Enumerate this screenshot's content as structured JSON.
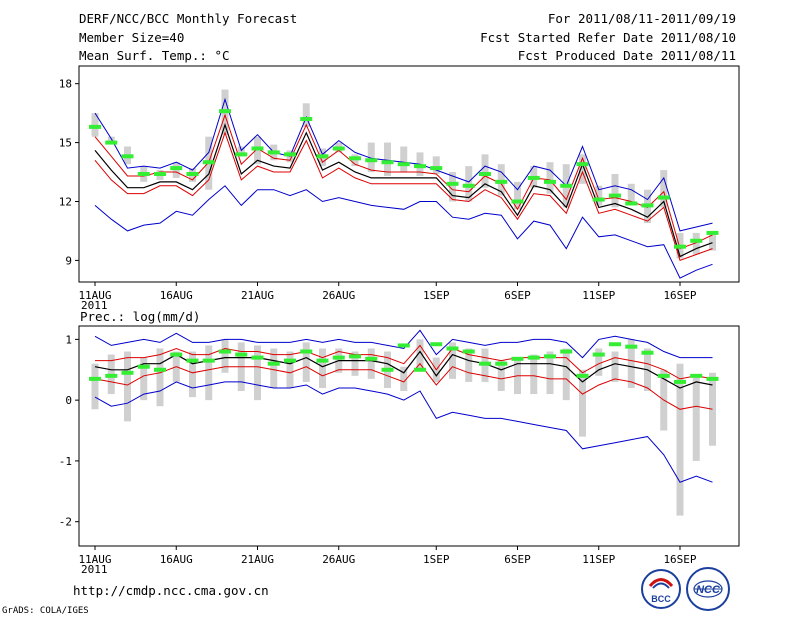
{
  "header": {
    "title": "DERF/NCC/BCC Monthly Forecast",
    "member_size": "Member Size=40",
    "variable": "Mean Surf. Temp.: °C",
    "period": "For 2011/08/11-2011/09/19",
    "started": "Fcst Started Refer Date 2011/08/10",
    "produced": "Fcst Produced Date 2011/08/11"
  },
  "footer": {
    "url": "http://cmdp.ncc.cma.gov.cn",
    "grads": "GrADS: COLA/IGES",
    "logo_bcc": "BCC",
    "logo_ncc": "NCC"
  },
  "colors": {
    "mean": "#000000",
    "inner": "#dd0000",
    "outer": "#0000cc",
    "box": "#d0d0d0",
    "marker": "#33ee33"
  },
  "chart_data": [
    {
      "type": "line",
      "title": "Mean Surf. Temp.: °C",
      "xlabel": "",
      "ylabel": "°C",
      "x_tick_labels": [
        "11AUG",
        "16AUG",
        "21AUG",
        "26AUG",
        "1SEP",
        "6SEP",
        "11SEP",
        "16SEP"
      ],
      "x_tick_days": [
        1,
        6,
        11,
        16,
        22,
        27,
        32,
        37
      ],
      "year_label": "2011",
      "ylim": [
        7.9,
        18.9
      ],
      "yticks": [
        9,
        12,
        15,
        18
      ],
      "series": [
        {
          "name": "max",
          "values": [
            16.5,
            15.2,
            13.7,
            13.8,
            13.7,
            14.0,
            13.6,
            14.5,
            17.2,
            14.6,
            15.4,
            14.5,
            14.3,
            16.3,
            14.4,
            15.1,
            14.5,
            14.2,
            14.1,
            14.0,
            13.9,
            13.6,
            13.3,
            13.0,
            13.8,
            13.5,
            12.6,
            13.8,
            13.6,
            12.8,
            14.8,
            12.6,
            12.8,
            12.6,
            12.1,
            13.2,
            10.5,
            10.7,
            10.9
          ]
        },
        {
          "name": "upper",
          "values": [
            15.3,
            14.3,
            13.3,
            13.3,
            13.5,
            13.5,
            13.1,
            14.0,
            16.4,
            13.9,
            14.7,
            14.2,
            14.1,
            15.9,
            14.0,
            14.6,
            13.9,
            13.6,
            13.5,
            13.5,
            13.5,
            13.4,
            12.6,
            12.5,
            13.3,
            12.9,
            11.6,
            13.2,
            13.1,
            12.1,
            14.2,
            12.1,
            12.2,
            12.0,
            11.7,
            12.5,
            9.6,
            9.9,
            10.3
          ]
        },
        {
          "name": "mean",
          "values": [
            14.6,
            13.6,
            12.7,
            12.7,
            13.0,
            13.0,
            12.6,
            13.4,
            15.9,
            13.4,
            14.1,
            13.8,
            13.7,
            15.5,
            13.6,
            14.0,
            13.5,
            13.2,
            13.2,
            13.2,
            13.2,
            13.2,
            12.3,
            12.2,
            12.9,
            12.5,
            11.3,
            12.8,
            12.6,
            11.7,
            13.9,
            11.7,
            11.9,
            11.6,
            11.2,
            12.0,
            9.2,
            9.6,
            9.9
          ]
        },
        {
          "name": "lower",
          "values": [
            14.1,
            13.1,
            12.4,
            12.4,
            12.8,
            12.8,
            12.3,
            13.1,
            15.5,
            13.1,
            13.8,
            13.5,
            13.5,
            15.1,
            13.2,
            13.7,
            13.2,
            12.9,
            12.9,
            12.9,
            12.9,
            12.9,
            12.1,
            12.0,
            12.6,
            12.2,
            11.1,
            12.4,
            12.3,
            11.4,
            13.5,
            11.4,
            11.6,
            11.3,
            11.0,
            11.7,
            9.0,
            9.3,
            9.6
          ]
        },
        {
          "name": "min",
          "values": [
            11.8,
            11.1,
            10.5,
            10.8,
            10.9,
            11.5,
            11.3,
            12.1,
            12.8,
            11.8,
            12.6,
            12.6,
            12.3,
            12.6,
            12.0,
            12.2,
            12.0,
            11.8,
            11.7,
            11.6,
            12.0,
            12.0,
            11.2,
            11.1,
            11.4,
            11.3,
            10.1,
            11.0,
            10.8,
            9.6,
            11.2,
            10.2,
            10.3,
            10.0,
            9.7,
            9.8,
            8.1,
            8.5,
            8.8
          ]
        }
      ],
      "box": [
        [
          15.3,
          16.5
        ],
        [
          15.0,
          15.3
        ],
        [
          13.9,
          14.8
        ],
        [
          13.0,
          13.8
        ],
        [
          13.1,
          13.6
        ],
        [
          13.2,
          14.0
        ],
        [
          13.0,
          13.7
        ],
        [
          12.6,
          15.3
        ],
        [
          15.4,
          17.7
        ],
        [
          14.3,
          14.8
        ],
        [
          13.9,
          15.3
        ],
        [
          14.1,
          14.9
        ],
        [
          14.0,
          14.6
        ],
        [
          15.8,
          17.0
        ],
        [
          13.8,
          14.7
        ],
        [
          14.5,
          15.0
        ],
        [
          13.8,
          14.4
        ],
        [
          13.5,
          15.0
        ],
        [
          13.3,
          15.0
        ],
        [
          13.5,
          14.8
        ],
        [
          13.3,
          14.5
        ],
        [
          13.4,
          14.3
        ],
        [
          12.0,
          13.5
        ],
        [
          12.0,
          13.8
        ],
        [
          12.7,
          14.4
        ],
        [
          12.3,
          13.9
        ],
        [
          11.6,
          13.0
        ],
        [
          12.7,
          13.8
        ],
        [
          12.4,
          14.0
        ],
        [
          11.7,
          13.9
        ],
        [
          12.9,
          14.4
        ],
        [
          11.8,
          12.8
        ],
        [
          11.7,
          13.4
        ],
        [
          11.8,
          12.9
        ],
        [
          10.9,
          12.6
        ],
        [
          11.7,
          13.6
        ],
        [
          9.1,
          10.4
        ],
        [
          9.3,
          10.4
        ],
        [
          9.5,
          10.5
        ]
      ],
      "marker": [
        15.8,
        15.0,
        14.3,
        13.4,
        13.4,
        13.7,
        13.4,
        14.0,
        16.6,
        14.4,
        14.7,
        14.5,
        14.4,
        16.2,
        14.3,
        14.7,
        14.2,
        14.1,
        14.0,
        13.9,
        13.8,
        13.7,
        12.9,
        12.8,
        13.4,
        13.0,
        12.0,
        13.2,
        13.0,
        12.8,
        13.9,
        12.1,
        12.3,
        11.9,
        11.8,
        12.2,
        9.7,
        10.0,
        10.4
      ]
    },
    {
      "type": "line",
      "title": "Prec.: log(mm/d)",
      "xlabel": "",
      "ylabel": "log(mm/d)",
      "x_tick_labels": [
        "11AUG",
        "16AUG",
        "21AUG",
        "26AUG",
        "1SEP",
        "6SEP",
        "11SEP",
        "16SEP"
      ],
      "x_tick_days": [
        1,
        6,
        11,
        16,
        22,
        27,
        32,
        37
      ],
      "year_label": "2011",
      "ylim": [
        -2.4,
        1.22
      ],
      "yticks": [
        -2,
        -1,
        0,
        1
      ],
      "series": [
        {
          "name": "max",
          "values": [
            1.05,
            0.9,
            0.95,
            1.0,
            0.95,
            1.1,
            0.95,
            0.95,
            1.0,
            1.0,
            0.95,
            0.95,
            0.95,
            1.0,
            0.95,
            1.0,
            0.95,
            0.95,
            0.9,
            0.85,
            1.15,
            0.75,
            1.0,
            0.95,
            0.9,
            0.95,
            0.95,
            1.0,
            1.0,
            0.95,
            0.7,
            1.0,
            1.05,
            1.0,
            0.95,
            0.8,
            0.7,
            0.7,
            0.7
          ]
        },
        {
          "name": "upper",
          "values": [
            0.65,
            0.65,
            0.7,
            0.7,
            0.75,
            0.85,
            0.75,
            0.75,
            0.85,
            0.8,
            0.8,
            0.75,
            0.75,
            0.8,
            0.7,
            0.8,
            0.75,
            0.75,
            0.7,
            0.6,
            0.9,
            0.5,
            0.85,
            0.75,
            0.7,
            0.65,
            0.7,
            0.7,
            0.7,
            0.7,
            0.45,
            0.6,
            0.7,
            0.65,
            0.6,
            0.5,
            0.35,
            0.4,
            0.35
          ]
        },
        {
          "name": "mean",
          "values": [
            0.55,
            0.5,
            0.5,
            0.6,
            0.6,
            0.75,
            0.6,
            0.65,
            0.7,
            0.7,
            0.7,
            0.65,
            0.6,
            0.7,
            0.55,
            0.65,
            0.65,
            0.65,
            0.6,
            0.45,
            0.8,
            0.4,
            0.75,
            0.65,
            0.6,
            0.5,
            0.6,
            0.6,
            0.6,
            0.55,
            0.3,
            0.5,
            0.6,
            0.55,
            0.5,
            0.35,
            0.2,
            0.3,
            0.25
          ]
        },
        {
          "name": "lower",
          "values": [
            0.35,
            0.3,
            0.25,
            0.4,
            0.45,
            0.55,
            0.45,
            0.5,
            0.55,
            0.55,
            0.55,
            0.5,
            0.45,
            0.55,
            0.4,
            0.5,
            0.5,
            0.5,
            0.4,
            0.3,
            0.6,
            0.25,
            0.55,
            0.45,
            0.4,
            0.35,
            0.4,
            0.4,
            0.35,
            0.35,
            0.1,
            0.25,
            0.35,
            0.3,
            0.2,
            0.0,
            -0.15,
            -0.1,
            -0.15
          ]
        },
        {
          "name": "min",
          "values": [
            0.05,
            -0.1,
            -0.05,
            0.1,
            0.15,
            0.3,
            0.2,
            0.25,
            0.3,
            0.3,
            0.25,
            0.2,
            0.2,
            0.25,
            0.1,
            0.2,
            0.2,
            0.15,
            0.1,
            0.0,
            0.15,
            -0.3,
            -0.2,
            -0.25,
            -0.3,
            -0.3,
            -0.35,
            -0.4,
            -0.45,
            -0.5,
            -0.8,
            -0.75,
            -0.7,
            -0.65,
            -0.6,
            -0.9,
            -1.35,
            -1.25,
            -1.35
          ]
        }
      ],
      "box": [
        [
          -0.15,
          0.6
        ],
        [
          0.1,
          0.75
        ],
        [
          -0.35,
          0.8
        ],
        [
          0.0,
          0.7
        ],
        [
          -0.1,
          0.85
        ],
        [
          0.3,
          0.8
        ],
        [
          0.05,
          0.8
        ],
        [
          0.0,
          0.9
        ],
        [
          0.45,
          1.0
        ],
        [
          0.15,
          0.95
        ],
        [
          0.0,
          0.9
        ],
        [
          0.2,
          0.85
        ],
        [
          0.2,
          0.8
        ],
        [
          0.3,
          0.95
        ],
        [
          0.2,
          0.85
        ],
        [
          0.45,
          0.85
        ],
        [
          0.4,
          0.8
        ],
        [
          0.35,
          0.85
        ],
        [
          0.2,
          0.8
        ],
        [
          0.15,
          0.55
        ],
        [
          0.5,
          1.0
        ],
        [
          0.3,
          0.7
        ],
        [
          0.35,
          0.95
        ],
        [
          0.3,
          0.85
        ],
        [
          0.3,
          0.85
        ],
        [
          0.15,
          0.65
        ],
        [
          0.1,
          0.7
        ],
        [
          0.1,
          0.75
        ],
        [
          0.1,
          0.8
        ],
        [
          0.0,
          0.85
        ],
        [
          -0.6,
          0.5
        ],
        [
          0.4,
          0.85
        ],
        [
          0.3,
          0.8
        ],
        [
          0.2,
          1.0
        ],
        [
          0.15,
          0.85
        ],
        [
          -0.5,
          0.5
        ],
        [
          -1.9,
          0.6
        ],
        [
          -1.0,
          0.4
        ],
        [
          -0.75,
          0.45
        ]
      ],
      "marker": [
        0.35,
        0.4,
        0.45,
        0.55,
        0.5,
        0.75,
        0.65,
        0.65,
        0.8,
        0.75,
        0.7,
        0.6,
        0.65,
        0.8,
        0.65,
        0.7,
        0.72,
        0.68,
        0.5,
        0.9,
        0.5,
        0.92,
        0.85,
        0.8,
        0.6,
        0.6,
        0.68,
        0.7,
        0.72,
        0.8,
        0.4,
        0.75,
        0.92,
        0.88,
        0.78,
        0.4,
        0.3,
        0.4,
        0.35
      ]
    }
  ]
}
